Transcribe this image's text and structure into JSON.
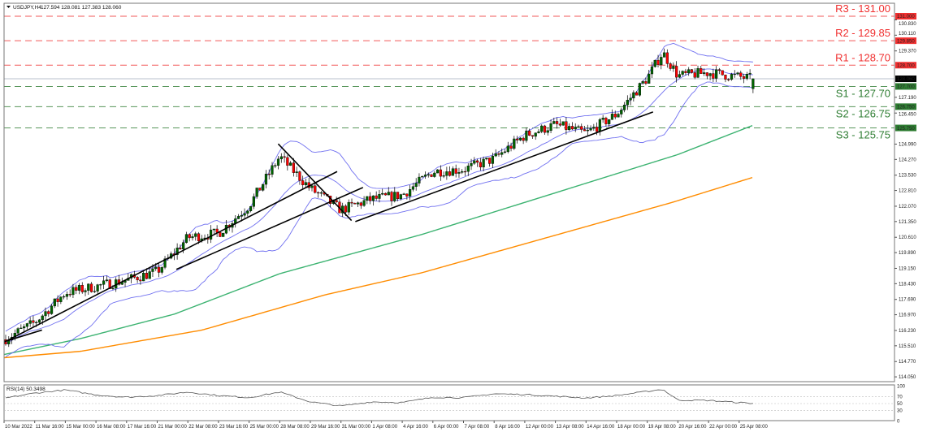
{
  "header": {
    "symbol": "USDJPY,H4",
    "ohlc": "127.594 128.081 127.383 128.060"
  },
  "rsi_panel": {
    "label": "RSI(14) 50.3498",
    "axis_labels": [
      "100",
      "70",
      "50",
      "30",
      "0"
    ]
  },
  "colors": {
    "bull_candle": "#006400",
    "bear_candle": "#ff0000",
    "bollinger": "#7070f0",
    "ma_green": "#3cb371",
    "ma_orange": "#ff8c00",
    "resistance": "#f03030",
    "support": "#2e7d32",
    "current_price": "#000000"
  },
  "levels": [
    {
      "label": "R3 - 131.00",
      "price": 131.0,
      "axis_label": "131.000",
      "type": "resistance"
    },
    {
      "label": "R2 - 129.85",
      "price": 129.85,
      "axis_label": "129.850",
      "type": "resistance"
    },
    {
      "label": "R1 - 128.70",
      "price": 128.7,
      "axis_label": "128.700",
      "type": "resistance"
    },
    {
      "label": "S1 - 127.70",
      "price": 127.7,
      "axis_label": "127.700",
      "type": "support"
    },
    {
      "label": "S2 - 126.75",
      "price": 126.75,
      "axis_label": "126.750",
      "type": "support"
    },
    {
      "label": "S3 - 125.75",
      "price": 125.75,
      "axis_label": "125.750",
      "type": "support"
    }
  ],
  "current_price": {
    "price": 128.06,
    "axis_label": "128.060"
  },
  "chart_data": {
    "type": "candlestick",
    "timeframe": "H4",
    "ylim": [
      114.05,
      131.0
    ],
    "y_ticks": [
      "130.830",
      "130.110",
      "129.370",
      "127.190",
      "126.450",
      "124.990",
      "124.270",
      "123.530",
      "122.810",
      "122.070",
      "121.350",
      "120.610",
      "119.890",
      "119.150",
      "118.430",
      "117.690",
      "116.970",
      "116.230",
      "115.510",
      "114.770",
      "114.050"
    ],
    "x_ticks": [
      "10 Mar 2022",
      "11 Mar 16:00",
      "15 Mar 00:00",
      "16 Mar 08:00",
      "17 Mar 16:00",
      "21 Mar 00:00",
      "22 Mar 08:00",
      "23 Mar 16:00",
      "25 Mar 00:00",
      "28 Mar 08:00",
      "29 Mar 16:00",
      "31 Mar 00:00",
      "1 Apr 08:00",
      "4 Apr 16:00",
      "6 Apr 00:00",
      "7 Apr 08:00",
      "8 Apr 16:00",
      "12 Apr 00:00",
      "13 Apr 08:00",
      "14 Apr 16:00",
      "18 Apr 00:00",
      "19 Apr 08:00",
      "20 Apr 16:00",
      "22 Apr 00:00",
      "25 Apr 08:00"
    ],
    "approx_close": [
      {
        "time": "10 Mar 00:00",
        "close": 115.8
      },
      {
        "time": "11 Mar 16:00",
        "close": 116.6
      },
      {
        "time": "15 Mar 00:00",
        "close": 118.0
      },
      {
        "time": "16 Mar 08:00",
        "close": 118.3
      },
      {
        "time": "17 Mar 16:00",
        "close": 118.6
      },
      {
        "time": "21 Mar 00:00",
        "close": 119.0
      },
      {
        "time": "22 Mar 08:00",
        "close": 120.6
      },
      {
        "time": "23 Mar 16:00",
        "close": 120.8
      },
      {
        "time": "25 Mar 00:00",
        "close": 122.1
      },
      {
        "time": "28 Mar 08:00",
        "close": 124.4
      },
      {
        "time": "29 Mar 16:00",
        "close": 122.9
      },
      {
        "time": "31 Mar 00:00",
        "close": 121.9
      },
      {
        "time": "1 Apr 08:00",
        "close": 122.4
      },
      {
        "time": "4 Apr 16:00",
        "close": 122.6
      },
      {
        "time": "6 Apr 00:00",
        "close": 123.7
      },
      {
        "time": "7 Apr 08:00",
        "close": 123.8
      },
      {
        "time": "8 Apr 16:00",
        "close": 124.3
      },
      {
        "time": "12 Apr 00:00",
        "close": 125.4
      },
      {
        "time": "13 Apr 08:00",
        "close": 125.9
      },
      {
        "time": "14 Apr 16:00",
        "close": 125.5
      },
      {
        "time": "18 Apr 00:00",
        "close": 126.4
      },
      {
        "time": "19 Apr 08:00",
        "close": 128.1
      },
      {
        "time": "20 Apr 00:00",
        "close": 129.3
      },
      {
        "time": "20 Apr 16:00",
        "close": 128.2
      },
      {
        "time": "22 Apr 00:00",
        "close": 128.35
      },
      {
        "time": "25 Apr 08:00",
        "close": 128.15
      },
      {
        "time": "26 Apr 04:00",
        "close": 128.06
      }
    ],
    "last_bar": {
      "open": 127.594,
      "high": 128.081,
      "low": 127.383,
      "close": 128.06
    },
    "ma_green": [
      {
        "time": "10 Mar 00:00",
        "value": 115.1
      },
      {
        "time": "15 Mar 16:00",
        "value": 115.85
      },
      {
        "time": "21 Mar 18:00",
        "value": 117.0
      },
      {
        "time": "28 Mar 08:00",
        "value": 118.9
      },
      {
        "time": "5 Apr 13:00",
        "value": 120.75
      },
      {
        "time": "12 Apr 00:00",
        "value": 122.25
      },
      {
        "time": "20 Apr 16:00",
        "value": 124.5
      },
      {
        "time": "26 Apr 04:00",
        "value": 125.9
      }
    ],
    "ma_orange": [
      {
        "time": "10 Mar 00:00",
        "value": 114.95
      },
      {
        "time": "15 Mar 16:00",
        "value": 115.25
      },
      {
        "time": "22 Mar 23:00",
        "value": 116.25
      },
      {
        "time": "30 Mar 07:00",
        "value": 117.9
      },
      {
        "time": "5 Apr 13:00",
        "value": 118.95
      },
      {
        "time": "20 Apr 10:00",
        "value": 122.25
      },
      {
        "time": "26 Apr 04:00",
        "value": 123.45
      }
    ],
    "trendlines": [
      {
        "from": {
          "time": "10 Mar 00:00",
          "price": 115.7
        },
        "to": {
          "time": "12 Mar 11:00",
          "price": 116.25
        }
      },
      {
        "from": {
          "time": "10 Mar 00:00",
          "price": 115.68
        },
        "to": {
          "time": "30 Mar 20:00",
          "price": 123.7
        }
      },
      {
        "from": {
          "time": "21 Mar 20:00",
          "price": 119.1
        },
        "to": {
          "time": "31 Mar 23:00",
          "price": 122.95
        }
      },
      {
        "from": {
          "time": "28 Mar 04:00",
          "price": 125.0
        },
        "to": {
          "time": "31 Mar 11:00",
          "price": 121.4
        }
      },
      {
        "from": {
          "time": "31 Mar 15:00",
          "price": 121.35
        },
        "to": {
          "time": "19 Apr 14:00",
          "price": 126.5
        }
      }
    ],
    "rsi": {
      "period": 14,
      "ylim": [
        0,
        100
      ],
      "levels": [
        70,
        50,
        30
      ],
      "values": [
        {
          "time": "10 Mar 00:00",
          "value": 65
        },
        {
          "time": "11 Mar 16:00",
          "value": 80
        },
        {
          "time": "15 Mar 00:00",
          "value": 89
        },
        {
          "time": "16 Mar 08:00",
          "value": 75
        },
        {
          "time": "17 Mar 16:00",
          "value": 68
        },
        {
          "time": "21 Mar 00:00",
          "value": 73
        },
        {
          "time": "22 Mar 08:00",
          "value": 83
        },
        {
          "time": "23 Mar 16:00",
          "value": 73
        },
        {
          "time": "25 Mar 00:00",
          "value": 67
        },
        {
          "time": "28 Mar 08:00",
          "value": 83
        },
        {
          "time": "29 Mar 16:00",
          "value": 55
        },
        {
          "time": "31 Mar 00:00",
          "value": 43
        },
        {
          "time": "1 Apr 08:00",
          "value": 55
        },
        {
          "time": "4 Apr 16:00",
          "value": 53
        },
        {
          "time": "6 Apr 00:00",
          "value": 68
        },
        {
          "time": "7 Apr 08:00",
          "value": 67
        },
        {
          "time": "8 Apr 16:00",
          "value": 78
        },
        {
          "time": "12 Apr 00:00",
          "value": 76
        },
        {
          "time": "13 Apr 08:00",
          "value": 71
        },
        {
          "time": "14 Apr 16:00",
          "value": 66
        },
        {
          "time": "18 Apr 00:00",
          "value": 73
        },
        {
          "time": "19 Apr 08:00",
          "value": 85
        },
        {
          "time": "20 Apr 00:00",
          "value": 91
        },
        {
          "time": "20 Apr 16:00",
          "value": 60
        },
        {
          "time": "22 Apr 00:00",
          "value": 59
        },
        {
          "time": "25 Apr 08:00",
          "value": 53
        },
        {
          "time": "26 Apr 04:00",
          "value": 50.35
        }
      ]
    }
  }
}
